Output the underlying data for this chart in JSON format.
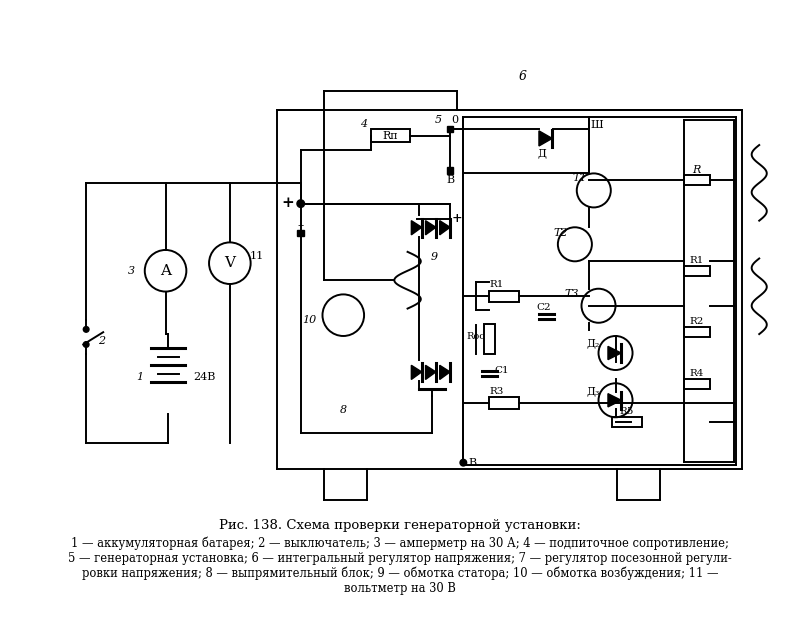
{
  "title": "Рис. 138. Схема проверки генераторной установки:",
  "cap1": "1 — аккумуляторная батарея; 2 — выключатель; 3 — амперметр на 30 А; 4 — подпиточное сопротивление;",
  "cap2": "5 — генераторная установка; 6 — интегральный регулятор напряжения; 7 — регулятор посезонной регули-",
  "cap3": "ровки напряжения; 8 — выпрямительный блок; 9 — обмотка статора; 10 — обмотка возбуждения; 11 —",
  "cap4": "вольтметр на 30 В",
  "bg": "#ffffff",
  "lc": "#000000"
}
